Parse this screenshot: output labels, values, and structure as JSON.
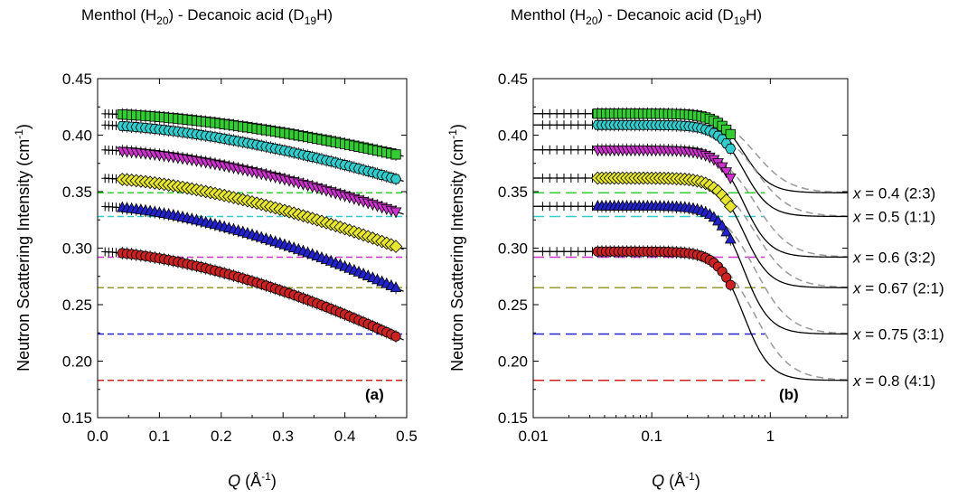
{
  "figure_title_left": {
    "prefix": "Menthol (H",
    "sub": "20",
    "mid": ") - Decanoic acid (D",
    "sub2": "19",
    "suffix": "H)"
  },
  "figure_title_right": {
    "prefix": "Menthol (H",
    "sub": "20",
    "mid": ") - Decanoic acid (D",
    "sub2": "19",
    "suffix": "H)"
  },
  "y_axis_label": {
    "text": "Neutron Scattering Intensity (cm",
    "sup": "-1",
    "close": ")"
  },
  "x_axis_label": {
    "var": "Q",
    "text": " (Å",
    "sup": "-1",
    "close": ")"
  },
  "series_labels": [
    {
      "var": "x",
      "text": " = 0.4 (2:3)"
    },
    {
      "var": "x",
      "text": " = 0.5 (1:1)"
    },
    {
      "var": "x",
      "text": " = 0.6 (3:2)"
    },
    {
      "var": "x",
      "text": " = 0.67 (2:1)"
    },
    {
      "var": "x",
      "text": " = 0.75 (3:1)"
    },
    {
      "var": "x",
      "text": " = 0.8 (4:1)"
    }
  ],
  "chart_data": [
    {
      "type": "scatter",
      "panel_label": "(a)",
      "x_scale": "linear",
      "xlim": [
        0.0,
        0.5
      ],
      "ylim": [
        0.15,
        0.45
      ],
      "x_ticks": [
        "0.0",
        "0.1",
        "0.2",
        "0.3",
        "0.4",
        "0.5"
      ],
      "y_ticks": [
        "0.15",
        "0.20",
        "0.25",
        "0.30",
        "0.35",
        "0.40",
        "0.45"
      ],
      "series": [
        {
          "name": "x = 0.4 (2:3)",
          "marker": "square",
          "color": "#33cc33",
          "I0": 0.419,
          "I_end": 0.382,
          "background": 0.349
        },
        {
          "name": "x = 0.5 (1:1)",
          "marker": "hexagon",
          "color": "#33cccc",
          "I0": 0.409,
          "I_end": 0.36,
          "background": 0.328
        },
        {
          "name": "x = 0.6 (3:2)",
          "marker": "triangle-down",
          "color": "#cc33cc",
          "I0": 0.387,
          "I_end": 0.331,
          "background": 0.292
        },
        {
          "name": "x = 0.67 (2:1)",
          "marker": "diamond",
          "color": "#e6e633",
          "I0": 0.362,
          "I_end": 0.3,
          "background": 0.265
        },
        {
          "name": "x = 0.75 (3:1)",
          "marker": "triangle-up",
          "color": "#2222cc",
          "I0": 0.337,
          "I_end": 0.263,
          "background": 0.224
        },
        {
          "name": "x = 0.8 (4:1)",
          "marker": "circle",
          "color": "#cc2222",
          "I0": 0.297,
          "I_end": 0.22,
          "background": 0.183
        }
      ]
    },
    {
      "type": "scatter",
      "panel_label": "(b)",
      "x_scale": "log",
      "xlim": [
        0.01,
        4.5
      ],
      "ylim": [
        0.15,
        0.45
      ],
      "x_ticks": [
        "0.01",
        "0.1",
        "1"
      ],
      "y_ticks": [
        "0.15",
        "0.20",
        "0.25",
        "0.30",
        "0.35",
        "0.40",
        "0.45"
      ],
      "q_data_range": [
        0.035,
        0.5
      ],
      "fits": [
        "solid black model",
        "dashed grey model"
      ]
    }
  ]
}
